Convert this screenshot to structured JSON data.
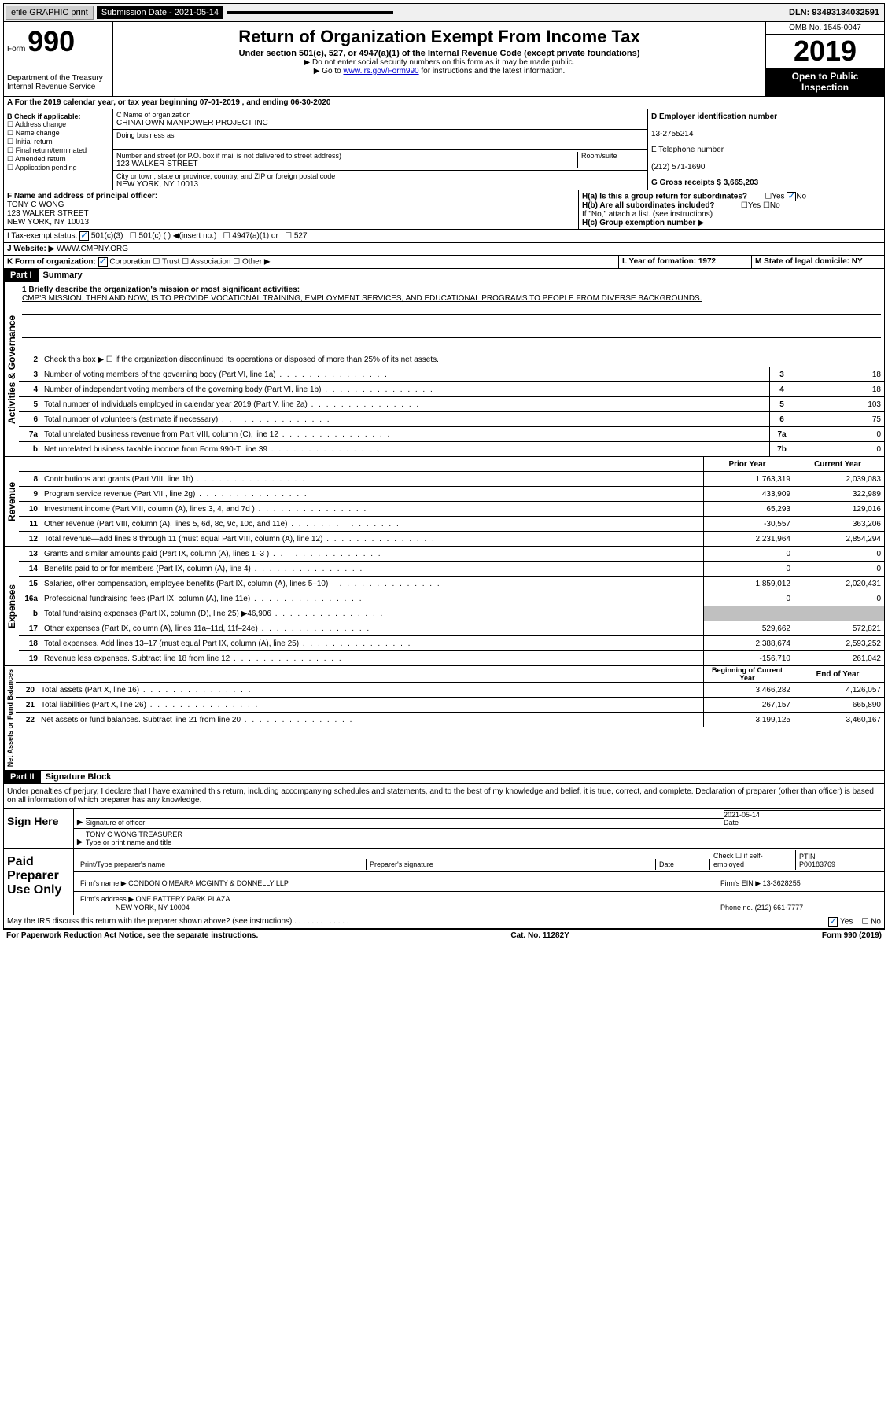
{
  "topbar": {
    "efile": "efile GRAPHIC print",
    "submission": "Submission Date - 2021-05-14",
    "dln": "DLN: 93493134032591"
  },
  "header": {
    "form_label": "Form",
    "form_number": "990",
    "dept": "Department of the Treasury Internal Revenue Service",
    "title": "Return of Organization Exempt From Income Tax",
    "subtitle": "Under section 501(c), 527, or 4947(a)(1) of the Internal Revenue Code (except private foundations)",
    "note1": "▶ Do not enter social security numbers on this form as it may be made public.",
    "note2_pre": "▶ Go to ",
    "note2_link": "www.irs.gov/Form990",
    "note2_post": " for instructions and the latest information.",
    "omb": "OMB No. 1545-0047",
    "year": "2019",
    "inspection": "Open to Public Inspection"
  },
  "row_a": "A For the 2019 calendar year, or tax year beginning 07-01-2019    , and ending 06-30-2020",
  "section_b": {
    "check_label": "B Check if applicable:",
    "opts": [
      "Address change",
      "Name change",
      "Initial return",
      "Final return/terminated",
      "Amended return",
      "Application pending"
    ],
    "c_label": "C Name of organization",
    "org_name": "CHINATOWN MANPOWER PROJECT INC",
    "dba_label": "Doing business as",
    "addr_label": "Number and street (or P.O. box if mail is not delivered to street address)",
    "room_label": "Room/suite",
    "addr": "123 WALKER STREET",
    "city_label": "City or town, state or province, country, and ZIP or foreign postal code",
    "city": "NEW YORK, NY  10013",
    "d_label": "D Employer identification number",
    "ein": "13-2755214",
    "e_label": "E Telephone number",
    "phone": "(212) 571-1690",
    "g_label": "G Gross receipts $ 3,665,203"
  },
  "section_f": {
    "f_label": "F  Name and address of principal officer:",
    "officer": "TONY C WONG",
    "officer_addr": "123 WALKER STREET",
    "officer_city": "NEW YORK, NY  10013",
    "ha_label": "H(a)  Is this a group return for subordinates?",
    "hb_label": "H(b)  Are all subordinates included?",
    "hb_note": "If \"No,\" attach a list. (see instructions)",
    "hc_label": "H(c)  Group exemption number ▶"
  },
  "row_i": {
    "label": "I   Tax-exempt status:",
    "opt1": "501(c)(3)",
    "opt2": "501(c) (   ) ◀(insert no.)",
    "opt3": "4947(a)(1) or",
    "opt4": "527"
  },
  "row_j": {
    "label": "J   Website: ▶",
    "value": "WWW.CMPNY.ORG"
  },
  "row_k": {
    "label": "K Form of organization:",
    "opts": [
      "Corporation",
      "Trust",
      "Association",
      "Other ▶"
    ],
    "l_label": "L Year of formation: 1972",
    "m_label": "M State of legal domicile: NY"
  },
  "part1": {
    "header": "Part I",
    "title": "Summary",
    "vtext_activities": "Activities & Governance",
    "vtext_revenue": "Revenue",
    "vtext_expenses": "Expenses",
    "vtext_netassets": "Net Assets or Fund Balances",
    "line1_label": "1  Briefly describe the organization's mission or most significant activities:",
    "mission": "CMP'S MISSION, THEN AND NOW, IS TO PROVIDE VOCATIONAL TRAINING, EMPLOYMENT SERVICES, AND EDUCATIONAL PROGRAMS TO PEOPLE FROM DIVERSE BACKGROUNDS.",
    "line2": "Check this box ▶ ☐  if the organization discontinued its operations or disposed of more than 25% of its net assets.",
    "prior_year": "Prior Year",
    "current_year": "Current Year",
    "beg_year": "Beginning of Current Year",
    "end_year": "End of Year",
    "lines_gov": [
      {
        "n": "3",
        "t": "Number of voting members of the governing body (Part VI, line 1a)",
        "b": "3",
        "v": "18"
      },
      {
        "n": "4",
        "t": "Number of independent voting members of the governing body (Part VI, line 1b)",
        "b": "4",
        "v": "18"
      },
      {
        "n": "5",
        "t": "Total number of individuals employed in calendar year 2019 (Part V, line 2a)",
        "b": "5",
        "v": "103"
      },
      {
        "n": "6",
        "t": "Total number of volunteers (estimate if necessary)",
        "b": "6",
        "v": "75"
      },
      {
        "n": "7a",
        "t": "Total unrelated business revenue from Part VIII, column (C), line 12",
        "b": "7a",
        "v": "0"
      },
      {
        "n": "b",
        "t": "Net unrelated business taxable income from Form 990-T, line 39",
        "b": "7b",
        "v": "0"
      }
    ],
    "lines_rev": [
      {
        "n": "8",
        "t": "Contributions and grants (Part VIII, line 1h)",
        "p": "1,763,319",
        "c": "2,039,083"
      },
      {
        "n": "9",
        "t": "Program service revenue (Part VIII, line 2g)",
        "p": "433,909",
        "c": "322,989"
      },
      {
        "n": "10",
        "t": "Investment income (Part VIII, column (A), lines 3, 4, and 7d )",
        "p": "65,293",
        "c": "129,016"
      },
      {
        "n": "11",
        "t": "Other revenue (Part VIII, column (A), lines 5, 6d, 8c, 9c, 10c, and 11e)",
        "p": "-30,557",
        "c": "363,206"
      },
      {
        "n": "12",
        "t": "Total revenue—add lines 8 through 11 (must equal Part VIII, column (A), line 12)",
        "p": "2,231,964",
        "c": "2,854,294"
      }
    ],
    "lines_exp": [
      {
        "n": "13",
        "t": "Grants and similar amounts paid (Part IX, column (A), lines 1–3 )",
        "p": "0",
        "c": "0"
      },
      {
        "n": "14",
        "t": "Benefits paid to or for members (Part IX, column (A), line 4)",
        "p": "0",
        "c": "0"
      },
      {
        "n": "15",
        "t": "Salaries, other compensation, employee benefits (Part IX, column (A), lines 5–10)",
        "p": "1,859,012",
        "c": "2,020,431"
      },
      {
        "n": "16a",
        "t": "Professional fundraising fees (Part IX, column (A), line 11e)",
        "p": "0",
        "c": "0"
      },
      {
        "n": "b",
        "t": "Total fundraising expenses (Part IX, column (D), line 25) ▶46,906",
        "p": "",
        "c": "",
        "shaded": true
      },
      {
        "n": "17",
        "t": "Other expenses (Part IX, column (A), lines 11a–11d, 11f–24e)",
        "p": "529,662",
        "c": "572,821"
      },
      {
        "n": "18",
        "t": "Total expenses. Add lines 13–17 (must equal Part IX, column (A), line 25)",
        "p": "2,388,674",
        "c": "2,593,252"
      },
      {
        "n": "19",
        "t": "Revenue less expenses. Subtract line 18 from line 12",
        "p": "-156,710",
        "c": "261,042"
      }
    ],
    "lines_net": [
      {
        "n": "20",
        "t": "Total assets (Part X, line 16)",
        "p": "3,466,282",
        "c": "4,126,057"
      },
      {
        "n": "21",
        "t": "Total liabilities (Part X, line 26)",
        "p": "267,157",
        "c": "665,890"
      },
      {
        "n": "22",
        "t": "Net assets or fund balances. Subtract line 21 from line 20",
        "p": "3,199,125",
        "c": "3,460,167"
      }
    ]
  },
  "part2": {
    "header": "Part II",
    "title": "Signature Block",
    "declaration": "Under penalties of perjury, I declare that I have examined this return, including accompanying schedules and statements, and to the best of my knowledge and belief, it is true, correct, and complete. Declaration of preparer (other than officer) is based on all information of which preparer has any knowledge.",
    "sign_here": "Sign Here",
    "sig_officer": "Signature of officer",
    "sig_date": "2021-05-14",
    "date_lbl": "Date",
    "officer_name": "TONY C WONG  TREASURER",
    "officer_type": "Type or print name and title",
    "paid": "Paid Preparer Use Only",
    "prep_name_lbl": "Print/Type preparer's name",
    "prep_sig_lbl": "Preparer's signature",
    "prep_date_lbl": "Date",
    "check_lbl": "Check ☐ if self-employed",
    "ptin_lbl": "PTIN",
    "ptin": "P00183769",
    "firm_name_lbl": "Firm's name     ▶",
    "firm_name": "CONDON O'MEARA MCGINTY & DONNELLY LLP",
    "firm_ein_lbl": "Firm's EIN ▶",
    "firm_ein": "13-3628255",
    "firm_addr_lbl": "Firm's address ▶",
    "firm_addr": "ONE BATTERY PARK PLAZA",
    "firm_city": "NEW YORK, NY  10004",
    "firm_phone_lbl": "Phone no.",
    "firm_phone": "(212) 661-7777",
    "discuss": "May the IRS discuss this return with the preparer shown above? (see instructions)",
    "yes": "Yes",
    "no": "No"
  },
  "footer": {
    "left": "For Paperwork Reduction Act Notice, see the separate instructions.",
    "mid": "Cat. No. 11282Y",
    "right": "Form 990 (2019)"
  }
}
